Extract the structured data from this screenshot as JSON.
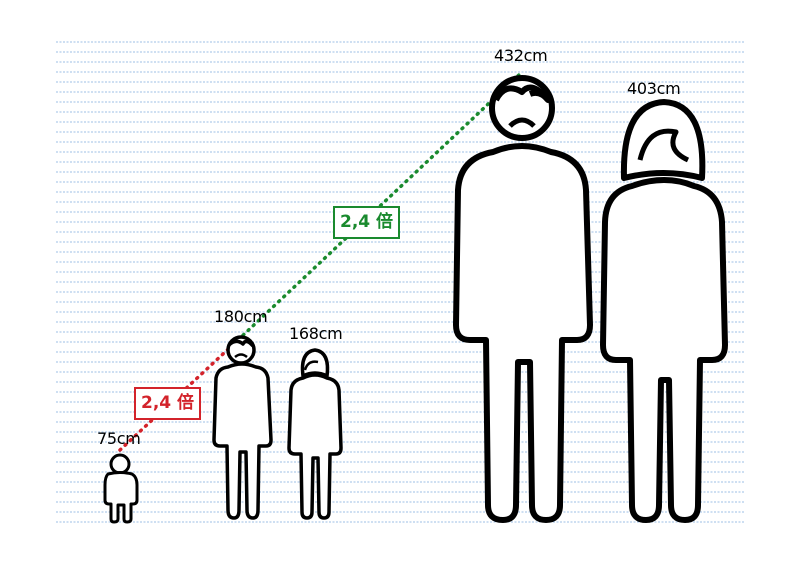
{
  "colors": {
    "line": "#9dbfe6",
    "figure": "#000000",
    "green": "#1a8a2e",
    "red": "#d3232b"
  },
  "figures": [
    {
      "id": "child",
      "height_cm": 75,
      "label": "75cm",
      "icon": "child-figure-icon"
    },
    {
      "id": "man",
      "height_cm": 180,
      "label": "180cm",
      "icon": "man-figure-icon"
    },
    {
      "id": "woman",
      "height_cm": 168,
      "label": "168cm",
      "icon": "woman-figure-icon"
    },
    {
      "id": "giant-man",
      "height_cm": 432,
      "label": "432cm",
      "icon": "giant-man-figure-icon"
    },
    {
      "id": "giant-woman",
      "height_cm": 403,
      "label": "403cm",
      "icon": "giant-woman-figure-icon"
    }
  ],
  "ratios": [
    {
      "label": "2,4 倍",
      "from": "child",
      "to": "man",
      "color": "red"
    },
    {
      "label": "2,4 倍",
      "from": "man",
      "to": "giant-man",
      "color": "green"
    }
  ]
}
